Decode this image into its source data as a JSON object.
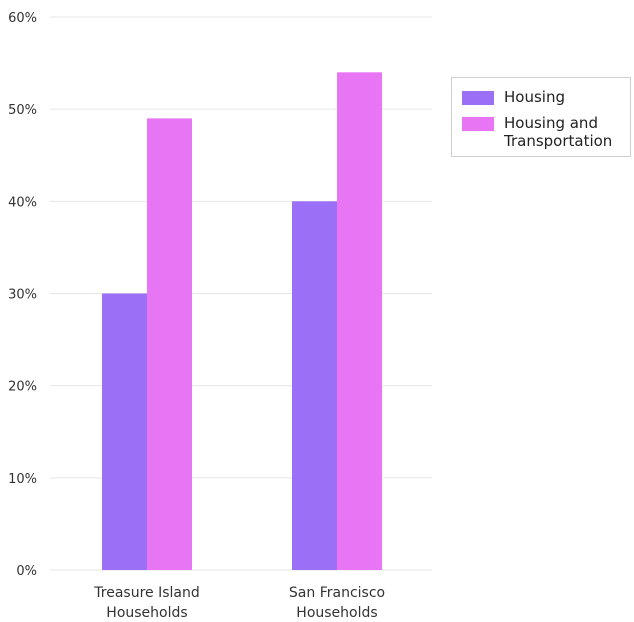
{
  "chart_data": {
    "type": "bar",
    "categories": [
      "Treasure Island\nHouseholds",
      "San Francisco\nHouseholds"
    ],
    "series": [
      {
        "name": "Housing",
        "values": [
          30,
          40
        ],
        "color": "#9b6ff6"
      },
      {
        "name": "Housing and\nTransportation",
        "values": [
          49,
          54
        ],
        "color": "#e876f4"
      }
    ],
    "ylim": [
      0,
      60
    ],
    "yticks": [
      0,
      10,
      20,
      30,
      40,
      50,
      60
    ],
    "ytick_labels": [
      "0%",
      "10%",
      "20%",
      "30%",
      "40%",
      "50%",
      "60%"
    ],
    "grid": true,
    "legend_position": "right"
  }
}
